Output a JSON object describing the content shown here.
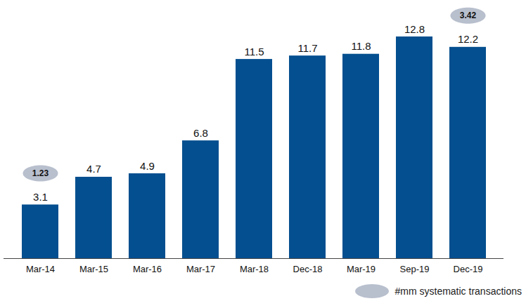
{
  "chart_data": {
    "type": "bar",
    "categories": [
      "Mar-14",
      "Mar-15",
      "Mar-16",
      "Mar-17",
      "Mar-18",
      "Dec-18",
      "Mar-19",
      "Sep-19",
      "Dec-19"
    ],
    "values": [
      3.1,
      4.7,
      4.9,
      6.8,
      11.5,
      11.7,
      11.8,
      12.8,
      12.2
    ],
    "color": "#044f8f",
    "data_labels": true,
    "tick_labels": "x",
    "legend": "bottom-right",
    "systematic_transactions": {
      "name": "#mm systematic transactions",
      "values": [
        1.23,
        null,
        null,
        null,
        null,
        null,
        null,
        null,
        3.42
      ],
      "color": "#b8bfcd"
    }
  }
}
